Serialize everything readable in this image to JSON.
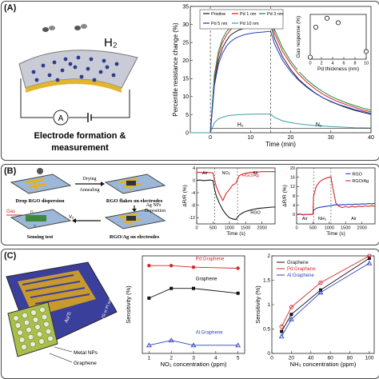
{
  "panels": {
    "a": {
      "letter": "(A)",
      "gas_label": "H₂",
      "meter_symbol": "A",
      "caption_line1": "Electrode formation &",
      "caption_line2": "measurement"
    },
    "b": {
      "letter": "(B)",
      "step1": "Drop RGO dispersion",
      "step2": "RGO flakes on electrodes",
      "step3": "RGO/Ag on electrodes",
      "step4": "Sensing test",
      "arrow1_top": "Drying",
      "arrow1_bottom": "Annealing",
      "arrow2_line1": "Ag NPs",
      "arrow2_line2": "Deposition",
      "gas_label": "Gas",
      "vd_label": "Vₒ",
      "electrode_d": "D",
      "electrode_s": "S"
    },
    "c": {
      "letter": "(C)",
      "schematic_labels": [
        "Au/Ti",
        "SiO₂/Si or PI substrate",
        "Metal NPs",
        "Graphene"
      ]
    }
  },
  "colors": {
    "pristine": "#222222",
    "pd1": "#d9262b",
    "pd3": "#1a8a3a",
    "pd5": "#2a3fbf",
    "pd10": "#3aa0a8",
    "rgo": "#1a1a1a",
    "rgo_ag": "#d9262b",
    "rgo2": "#1f3fbf",
    "c_graphene": "#111111",
    "c_pd": "#d9262b",
    "c_al": "#2a3fbf"
  },
  "chart_data": [
    {
      "id": "a-main",
      "type": "line",
      "xlabel": "Time (min)",
      "ylabel": "Percentile resistance change (%)",
      "xlim": [
        -5,
        40
      ],
      "ylim": [
        0,
        35
      ],
      "xticks": [
        0,
        10,
        20,
        30,
        40
      ],
      "yticks": [
        0,
        5,
        10,
        15,
        20,
        25,
        30,
        35
      ],
      "legend": [
        "Pristine",
        "Pd 1 nm",
        "Pd 3 nm",
        "Pd 5 nm",
        "Pd 10 nm"
      ],
      "legend_position": "top-center",
      "annotations": [
        "H₂",
        "N₂"
      ],
      "x": [
        -5,
        0,
        1,
        2,
        3,
        4,
        5,
        6,
        7,
        8,
        9,
        10,
        11,
        12,
        13,
        14,
        15,
        15.1,
        16,
        18,
        20,
        22,
        24,
        26,
        28,
        30,
        32,
        34,
        36,
        38,
        40
      ],
      "series": [
        {
          "name": "Pristine",
          "values": [
            0,
            0,
            14,
            20,
            23.5,
            25.5,
            27,
            27.8,
            28.4,
            28.8,
            29.1,
            29.3,
            29.5,
            29.6,
            29.7,
            29.8,
            29.9,
            29.6,
            26,
            21,
            17.5,
            14.8,
            12.8,
            11.1,
            9.7,
            8.6,
            7.7,
            6.9,
            6.2,
            5.6,
            5.1
          ]
        },
        {
          "name": "Pd 1 nm",
          "values": [
            0,
            0,
            15,
            21.5,
            25,
            27,
            28.5,
            29.4,
            30,
            30.4,
            30.7,
            30.9,
            31.1,
            31.2,
            31.3,
            31.4,
            31.5,
            31.2,
            27.5,
            22.5,
            19,
            16.2,
            14,
            12.2,
            10.7,
            9.5,
            8.5,
            7.7,
            7,
            6.3,
            5.8
          ]
        },
        {
          "name": "Pd 3 nm",
          "values": [
            0,
            0,
            16,
            22.5,
            26,
            28,
            29.3,
            30.2,
            30.8,
            31.3,
            31.6,
            31.9,
            32.1,
            32.2,
            32.3,
            32.4,
            32.5,
            32.2,
            28.5,
            23.5,
            19.8,
            17,
            14.7,
            12.9,
            11.4,
            10.1,
            9.1,
            8.2,
            7.5,
            6.8,
            6.3
          ]
        },
        {
          "name": "Pd 5 nm",
          "values": [
            0,
            0,
            13,
            19,
            22,
            24,
            25.2,
            26,
            26.6,
            27,
            27.3,
            27.5,
            27.7,
            27.8,
            27.9,
            28,
            28.1,
            27.8,
            24.5,
            20,
            16.9,
            14.5,
            12.6,
            11,
            9.7,
            8.7,
            7.8,
            7.1,
            6.4,
            5.9,
            5.4
          ]
        },
        {
          "name": "Pd 10 nm",
          "values": [
            0,
            0,
            2.8,
            3.8,
            4.3,
            4.6,
            4.8,
            4.9,
            5,
            5.05,
            5.1,
            5.12,
            5.15,
            5.17,
            5.18,
            5.19,
            5.2,
            5.1,
            4.2,
            3.3,
            2.8,
            2.45,
            2.2,
            2,
            1.85,
            1.7,
            1.6,
            1.5,
            1.4,
            1.35,
            1.3
          ]
        }
      ]
    },
    {
      "id": "a-inset",
      "type": "scatter",
      "xlabel": "Pd thickness (nm)",
      "ylabel": "Gas response (%)",
      "xlim": [
        0,
        10
      ],
      "ylim": [
        0,
        35
      ],
      "xticks": [
        0,
        2,
        4,
        6,
        8,
        10
      ],
      "x": [
        0,
        1,
        3,
        5,
        10
      ],
      "values": [
        1.5,
        25,
        32,
        28.5,
        6
      ]
    },
    {
      "id": "b-left",
      "type": "line",
      "xlabel": "Time (s)",
      "ylabel": "ΔR/R (%)",
      "xlim": [
        0,
        2400
      ],
      "ylim": [
        -14,
        4
      ],
      "xticks": [
        0,
        500,
        1000,
        1500,
        2000
      ],
      "yticks": [
        -12,
        -8,
        -4,
        0,
        4
      ],
      "legend": [
        "RGO/Ag",
        "RGO"
      ],
      "annotations": [
        "Air",
        "NO₂",
        "Air"
      ],
      "x": [
        0,
        100,
        200,
        300,
        400,
        500,
        550,
        600,
        700,
        800,
        900,
        1000,
        1100,
        1200,
        1300,
        1400,
        1500,
        1600,
        1700,
        1800,
        1900,
        2000,
        2100,
        2200,
        2300,
        2400
      ],
      "series": [
        {
          "name": "RGO",
          "values": [
            0,
            0.1,
            -0.1,
            0,
            0.1,
            0,
            -3,
            -5,
            -7.5,
            -9.5,
            -11,
            -12,
            -12.4,
            -12.6,
            -11.2,
            -10.5,
            -10,
            -9.7,
            -9.4,
            -9.2,
            -9,
            -8.9,
            -8.8,
            -8.7,
            -8.6,
            -8.6
          ]
        },
        {
          "name": "RGO/Ag",
          "values": [
            2.5,
            2.6,
            2.4,
            2.6,
            2.5,
            2.4,
            0,
            -2,
            -4.5,
            -6.5,
            -4.2,
            -3,
            -1.5,
            -1,
            1.5,
            2,
            2.3,
            2.5,
            2.6,
            2.7,
            2.7,
            2.8,
            2.8,
            2.8,
            2.8,
            2.8
          ]
        }
      ]
    },
    {
      "id": "b-right",
      "type": "line",
      "xlabel": "Time (s)",
      "ylabel": "ΔR/R (%)",
      "xlim": [
        0,
        2400
      ],
      "ylim": [
        -4,
        20
      ],
      "xticks": [
        0,
        500,
        1000,
        1500,
        2000
      ],
      "yticks": [
        0,
        4,
        8,
        12,
        16,
        20
      ],
      "legend": [
        "RGO",
        "RGO/Ag"
      ],
      "annotations": [
        "Air",
        "NH₃",
        "Air"
      ],
      "x": [
        0,
        100,
        200,
        300,
        400,
        500,
        520,
        600,
        700,
        800,
        900,
        1000,
        1050,
        1100,
        1200,
        1300,
        1400,
        1500,
        1600,
        1700,
        1800,
        1900,
        2000,
        2100,
        2200,
        2300,
        2400
      ],
      "series": [
        {
          "name": "RGO",
          "values": [
            0,
            0.2,
            -0.1,
            0.1,
            0,
            0.1,
            1.8,
            2.7,
            3.1,
            3.3,
            3.5,
            3.7,
            3.8,
            4,
            4.2,
            4.1,
            4.3,
            4.2,
            4.4,
            4.3,
            4.5,
            4.4,
            4.6,
            4.5,
            4.7,
            4.6,
            4.8
          ]
        },
        {
          "name": "RGO/Ag",
          "values": [
            0,
            0.3,
            -0.2,
            0.1,
            0,
            0.2,
            8,
            12,
            14,
            15,
            15.6,
            16,
            16.2,
            12,
            5,
            3.5,
            3,
            3.4,
            3.1,
            3.5,
            3.2,
            3.6,
            3.4,
            3.7,
            3.5,
            3.8,
            3.6
          ]
        }
      ]
    },
    {
      "id": "c-middle",
      "type": "line",
      "xlabel": "NO₂ concentration (ppm)",
      "ylabel": "Sensitivity (%)",
      "xlim": [
        0.7,
        5.3
      ],
      "ylim": [
        -3,
        0
      ],
      "xticks": [
        1,
        2,
        3,
        4,
        5
      ],
      "series": [
        {
          "name": "Pd:Graphene",
          "x": [
            1,
            2,
            3,
            5
          ],
          "values": [
            -0.3,
            -0.3,
            -0.35,
            -0.38
          ]
        },
        {
          "name": "Graphene",
          "x": [
            1,
            2,
            3,
            5
          ],
          "values": [
            -1.3,
            -1.0,
            -1.0,
            -1.15
          ]
        },
        {
          "name": "Al:Graphene",
          "x": [
            1,
            2,
            3,
            5
          ],
          "values": [
            -2.75,
            -2.6,
            -2.75,
            -2.75
          ]
        }
      ]
    },
    {
      "id": "c-right",
      "type": "line",
      "xlabel": "NH₃ concentration (ppm)",
      "ylabel": "Sensitivity (%)",
      "xlim": [
        0,
        105
      ],
      "ylim": [
        0,
        2
      ],
      "xticks": [
        0,
        20,
        40,
        60,
        80,
        100
      ],
      "yticks": [
        0,
        0.5,
        1,
        1.5,
        2
      ],
      "legend": [
        "Graphene",
        "Pd:Graphene",
        "Al:Graphene"
      ],
      "legend_position": "top-left",
      "series": [
        {
          "name": "Graphene",
          "x": [
            10,
            20,
            50,
            100
          ],
          "values": [
            0.45,
            0.8,
            1.3,
            1.95
          ]
        },
        {
          "name": "Pd:Graphene",
          "x": [
            10,
            20,
            50,
            100
          ],
          "values": [
            0.55,
            0.95,
            1.45,
            2.0
          ]
        },
        {
          "name": "Al:Graphene",
          "x": [
            10,
            20,
            50,
            100
          ],
          "values": [
            0.35,
            0.7,
            1.25,
            1.85
          ]
        }
      ]
    }
  ]
}
